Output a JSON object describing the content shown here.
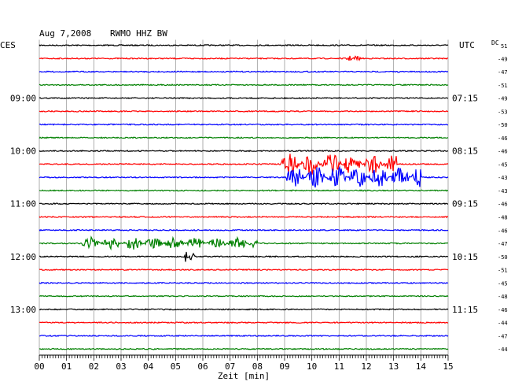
{
  "header": {
    "date": "Aug 7,2008",
    "station": "RWMO HHZ BW",
    "left_tz": "CES",
    "right_tz": "UTC",
    "dc_label": "DC",
    "dc_first": "51"
  },
  "chart_data": {
    "type": "line",
    "title": "Aug 7,2008   RWMO HHZ BW",
    "xlabel": "Zeit [min]",
    "x_range": [
      0,
      15
    ],
    "x_tick_labels": [
      "00",
      "01",
      "02",
      "03",
      "04",
      "05",
      "06",
      "07",
      "08",
      "09",
      "10",
      "11",
      "12",
      "13",
      "14",
      "15"
    ],
    "trace_colors": [
      "#000000",
      "#ff0000",
      "#0000ff",
      "#008000"
    ],
    "left_time_labels": [
      {
        "trace": 4,
        "text": "09:00"
      },
      {
        "trace": 8,
        "text": "10:00"
      },
      {
        "trace": 12,
        "text": "11:00"
      },
      {
        "trace": 16,
        "text": "12:00"
      },
      {
        "trace": 20,
        "text": "13:00"
      }
    ],
    "right_time_labels": [
      {
        "trace": 4,
        "text": "07:15"
      },
      {
        "trace": 8,
        "text": "08:15"
      },
      {
        "trace": 12,
        "text": "09:15"
      },
      {
        "trace": 16,
        "text": "10:15"
      },
      {
        "trace": 20,
        "text": "11:15"
      }
    ],
    "dc_offsets": [
      "-49",
      "-47",
      "-51",
      "-49",
      "-53",
      "-50",
      "-46",
      "-46",
      "-45",
      "-43",
      "-43",
      "-46",
      "-48",
      "-46",
      "-47",
      "-50",
      "-51",
      "-45",
      "-48",
      "-46",
      "-44",
      "-47",
      "-44"
    ],
    "events": [
      {
        "trace": 1,
        "start_min": 11.2,
        "end_min": 11.8,
        "amplitude": "small"
      },
      {
        "trace": 9,
        "start_min": 8.8,
        "end_min": 13.1,
        "amplitude": "large"
      },
      {
        "trace": 10,
        "start_min": 9.0,
        "end_min": 14.0,
        "amplitude": "large"
      },
      {
        "trace": 15,
        "start_min": 1.5,
        "end_min": 8.0,
        "amplitude": "medium"
      },
      {
        "trace": 16,
        "start_min": 5.3,
        "end_min": 5.7,
        "amplitude": "medium"
      }
    ]
  }
}
